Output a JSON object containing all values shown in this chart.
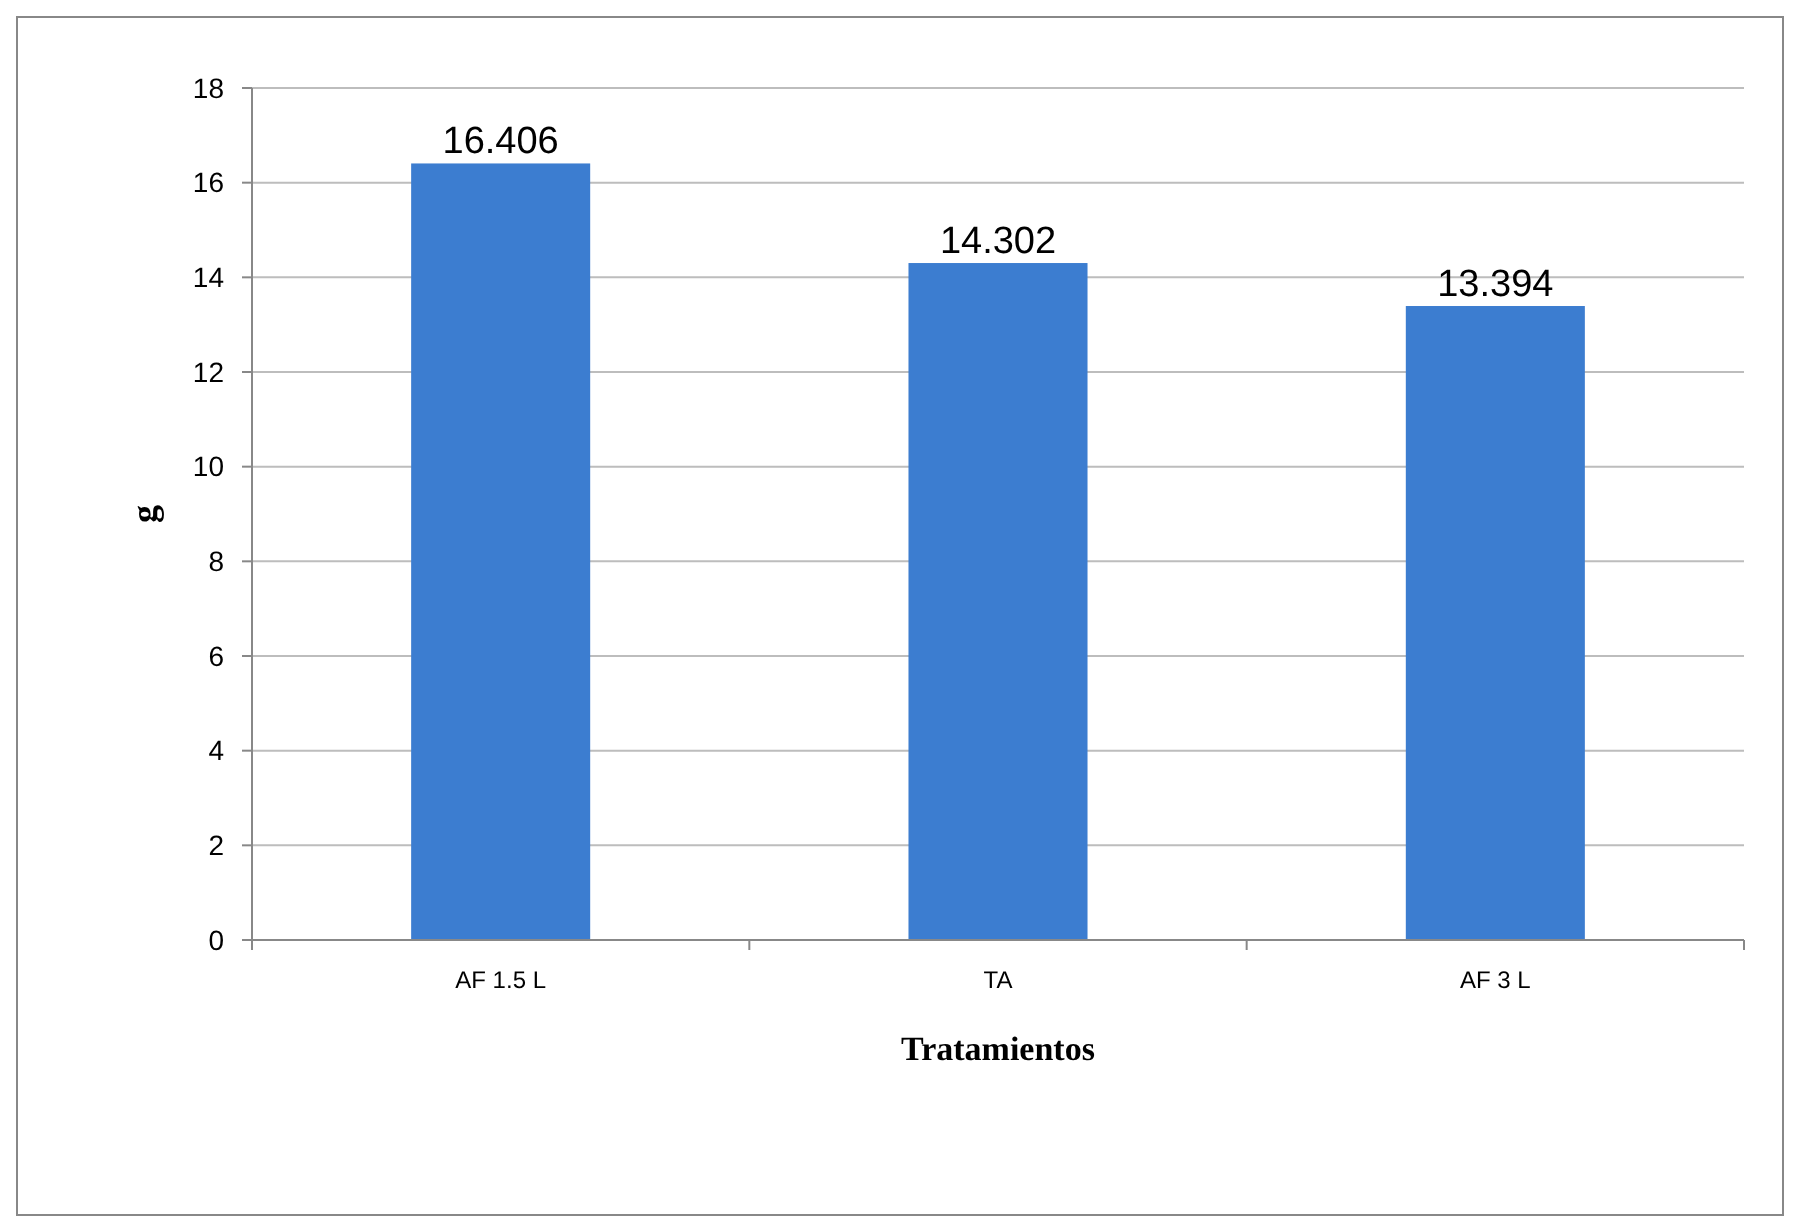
{
  "chart_data": {
    "type": "bar",
    "xlabel": "Tratamientos",
    "ylabel": "g",
    "categories": [
      "AF 1.5 L",
      "TA",
      "AF 3 L"
    ],
    "values": [
      16.406,
      14.302,
      13.394
    ],
    "color": "#3c7dd0",
    "ylim": [
      0,
      18
    ],
    "yticks": [
      0,
      2,
      4,
      6,
      8,
      10,
      12,
      14,
      16,
      18
    ],
    "grid": "y",
    "data_labels": true
  }
}
